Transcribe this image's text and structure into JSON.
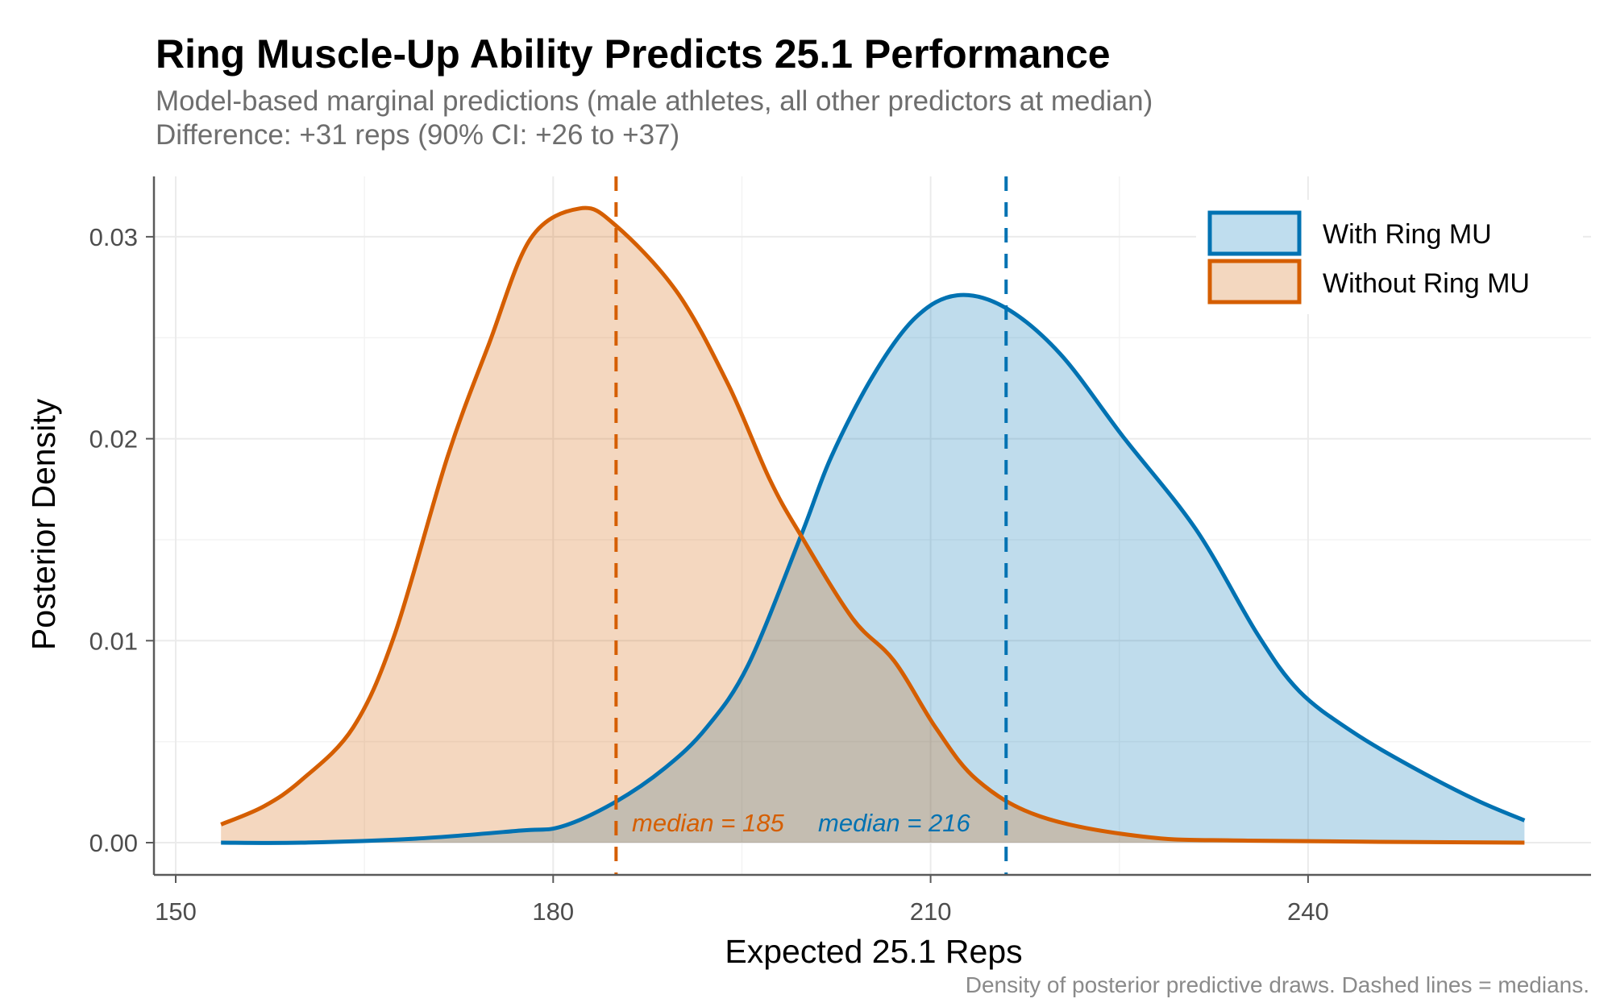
{
  "chart_data": {
    "type": "area",
    "title": "Ring Muscle-Up Ability Predicts 25.1 Performance",
    "subtitle": [
      "Model-based marginal predictions (male athletes, all other predictors at median)",
      "Difference: +31 reps (90% CI: +26 to +37)"
    ],
    "xlabel": "Expected 25.1 Reps",
    "ylabel": "Posterior Density",
    "caption": "Density of posterior predictive draws. Dashed lines = medians.",
    "xlim": [
      148,
      262
    ],
    "ylim": [
      -0.0016,
      0.0328
    ],
    "x_ticks": [
      150,
      180,
      210,
      240
    ],
    "x_tick_labels": [
      "150",
      "180",
      "210",
      "240"
    ],
    "y_ticks": [
      0,
      0.01,
      0.02,
      0.03
    ],
    "y_tick_labels": [
      "0.00",
      "0.01",
      "0.02",
      "0.03"
    ],
    "grid": true,
    "legend_position": "top-right",
    "series": [
      {
        "name": "With Ring MU",
        "color": "#0072B2",
        "fill": "#BFDDEE",
        "median": 216,
        "median_label": "median = 216",
        "x": [
          153.6,
          160,
          169.1,
          177.4,
          180.7,
          184.9,
          188.9,
          192.2,
          195.5,
          199.7,
          202.1,
          205.5,
          208.8,
          212.1,
          215.9,
          220.3,
          225.3,
          231.1,
          236.0,
          239.3,
          243.5,
          248.4,
          253.4,
          257.2
        ],
        "y": [
          0.0,
          0.0,
          0.0002,
          0.0006,
          0.0008,
          0.002,
          0.0037,
          0.0057,
          0.0088,
          0.0152,
          0.0191,
          0.0232,
          0.026,
          0.0271,
          0.0265,
          0.0242,
          0.0201,
          0.0155,
          0.0103,
          0.0075,
          0.0055,
          0.0037,
          0.0021,
          0.0011
        ]
      },
      {
        "name": "Without Ring MU",
        "color": "#D55E00",
        "fill": "#F3D7BF",
        "median": 185,
        "median_label": "median = 185",
        "x": [
          153.6,
          157,
          160,
          164.1,
          167.4,
          171.6,
          174.9,
          178.2,
          182.1,
          184.9,
          189.8,
          193.9,
          197.2,
          199.7,
          203.8,
          207.1,
          210.4,
          213.7,
          218.7,
          226.9,
          235.2,
          257.2
        ],
        "y": [
          0.0009,
          0.0018,
          0.0031,
          0.0057,
          0.0103,
          0.0191,
          0.0247,
          0.0299,
          0.0314,
          0.0306,
          0.0273,
          0.0227,
          0.018,
          0.0152,
          0.0111,
          0.009,
          0.0057,
          0.0031,
          0.0013,
          0.0003,
          0.0001,
          0.0
        ]
      }
    ]
  }
}
